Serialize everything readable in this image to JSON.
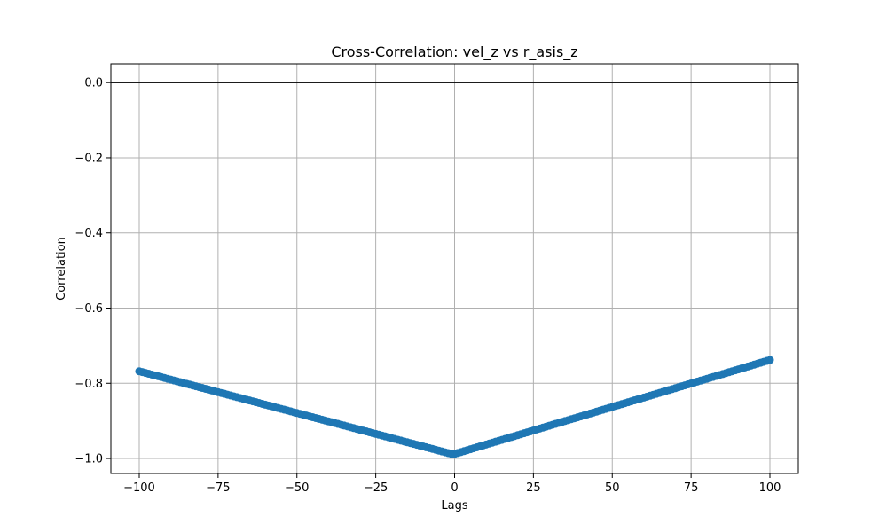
{
  "chart_data": {
    "type": "scatter",
    "title": "Cross-Correlation: vel_z vs r_asis_z",
    "xlabel": "Lags",
    "ylabel": "Correlation",
    "xlim": [
      -109,
      109
    ],
    "ylim": [
      -1.04,
      0.05
    ],
    "xticks": [
      -100,
      -75,
      -50,
      -25,
      0,
      25,
      50,
      75,
      100
    ],
    "xtick_labels": [
      "−100",
      "−75",
      "−50",
      "−25",
      "0",
      "25",
      "50",
      "75",
      "100"
    ],
    "yticks": [
      0.0,
      -0.2,
      -0.4,
      -0.6,
      -0.8,
      -1.0
    ],
    "ytick_labels": [
      "0.0",
      "−0.2",
      "−0.4",
      "−0.6",
      "−0.8",
      "−1.0"
    ],
    "grid": true,
    "reference_line_y": 0.0,
    "series": [
      {
        "color": "#1f77b4",
        "left_segment": {
          "x_start": -100,
          "x_end": -1,
          "y_start": -0.768,
          "y_end": -0.988
        },
        "right_segment": {
          "x_start": 0,
          "x_end": 100,
          "y_start": -0.988,
          "y_end": -0.738
        }
      }
    ]
  }
}
